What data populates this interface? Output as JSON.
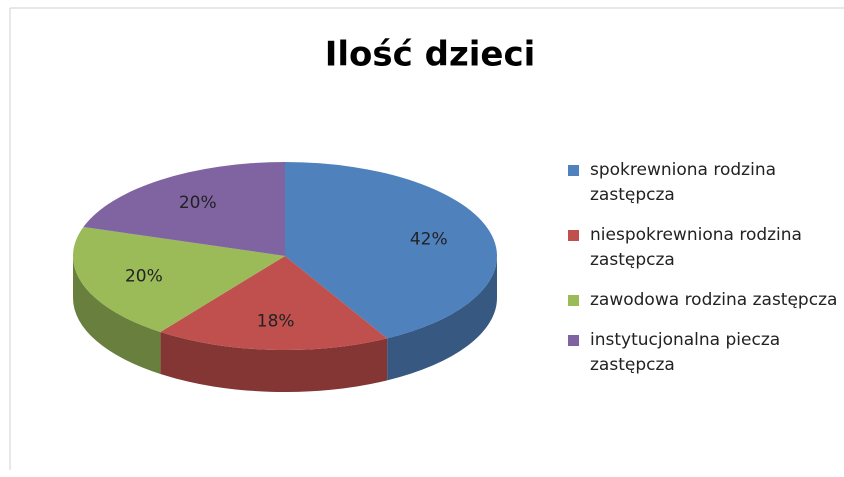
{
  "chart_data": {
    "type": "pie3d",
    "title": "Ilość dzieci",
    "categories": [
      "spokrewniona rodzina zastępcza",
      "niespokrewniona rodzina zastępcza",
      "zawodowa rodzina zastępcza",
      "instytucjonalna piecza zastępcza"
    ],
    "values": [
      42,
      18,
      20,
      20
    ],
    "value_labels": [
      "42%",
      "18%",
      "20%",
      "20%"
    ],
    "colors": [
      "#4f81bd",
      "#c0504d",
      "#9bbb59",
      "#8064a2"
    ],
    "legend": "right"
  }
}
